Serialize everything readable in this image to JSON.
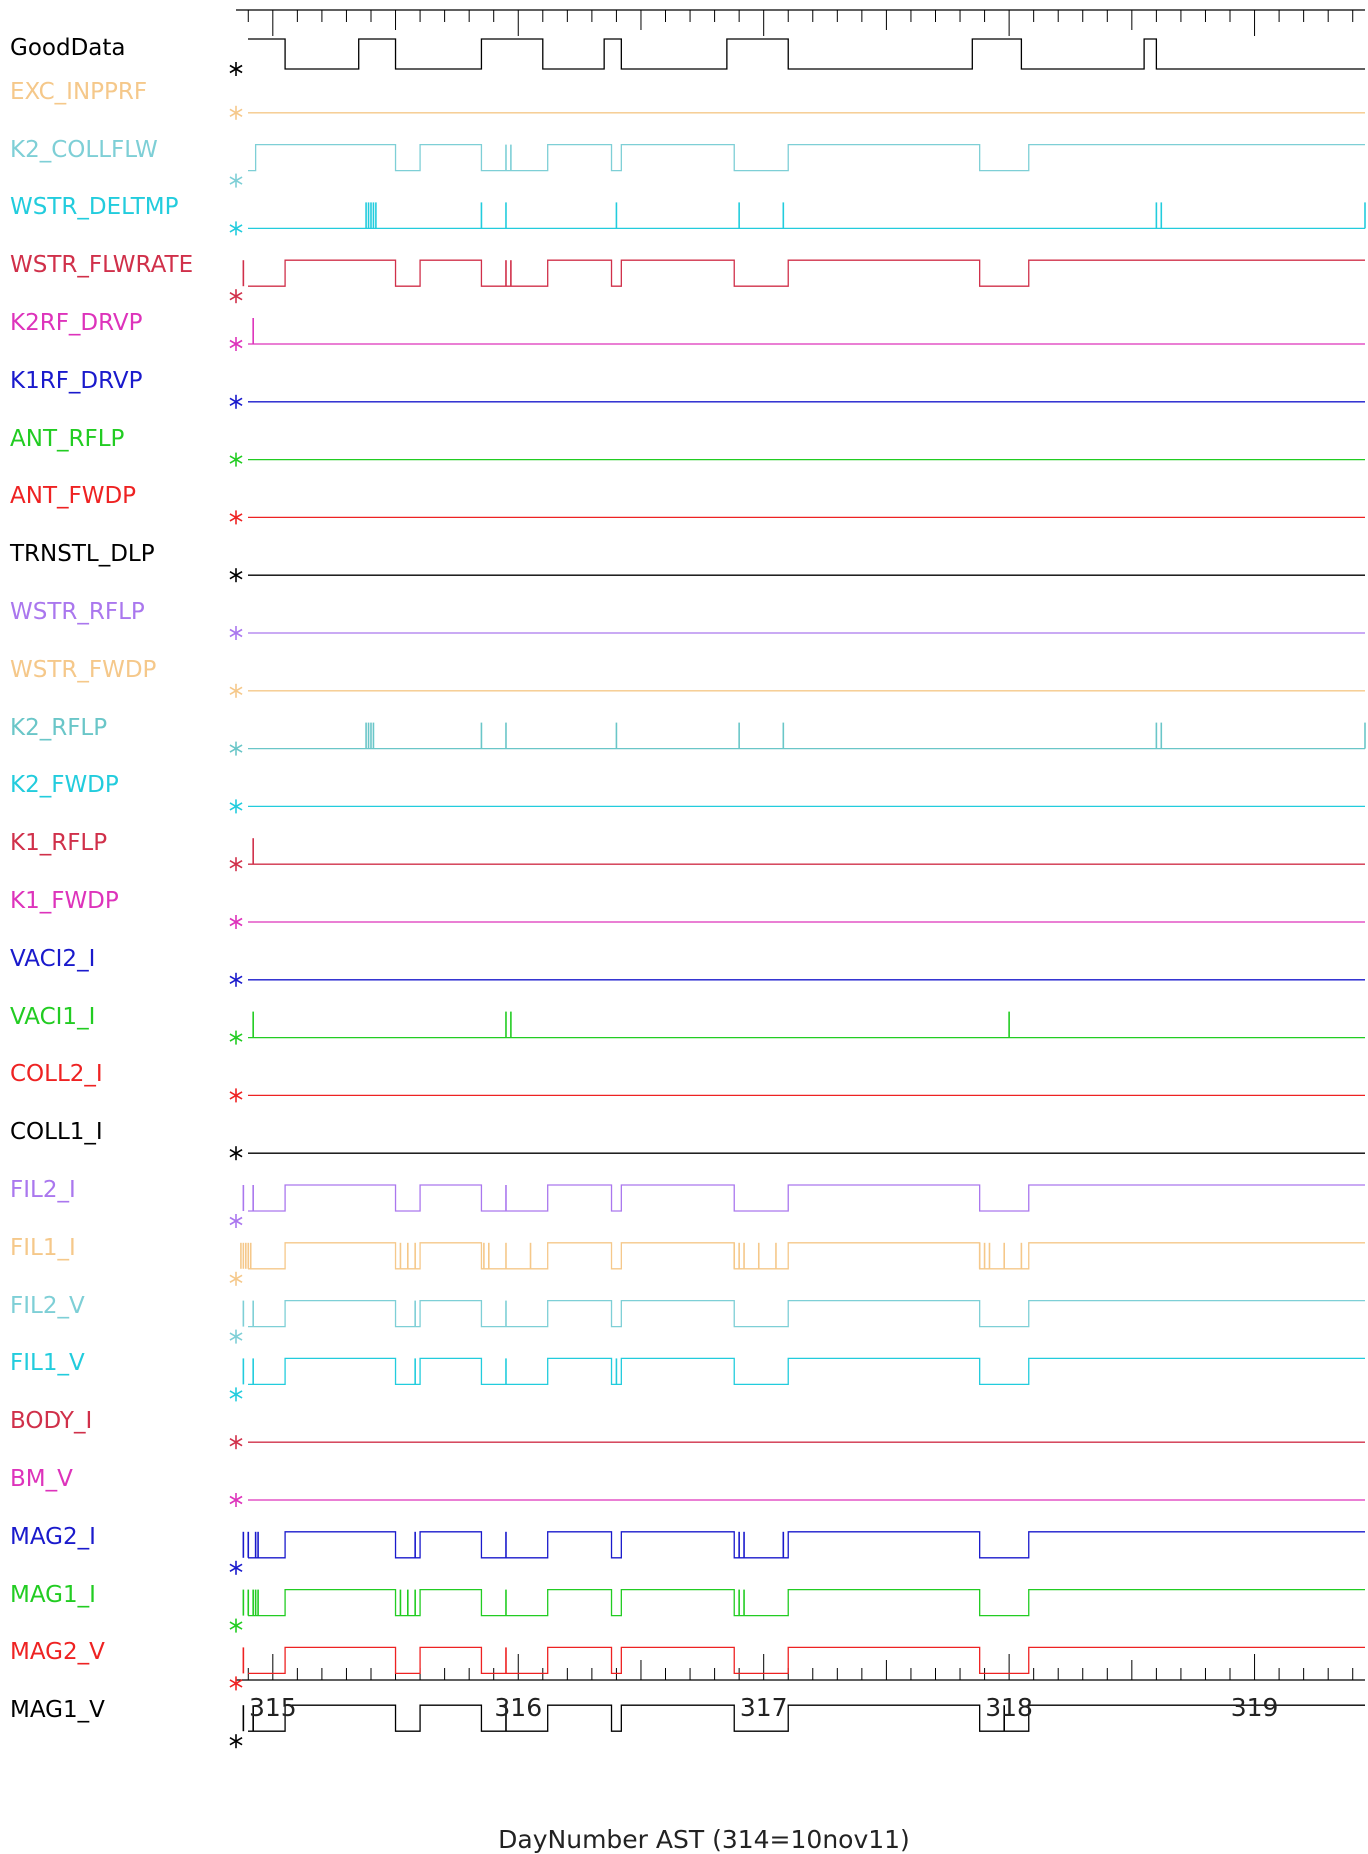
{
  "chart_data": {
    "type": "line",
    "title": "",
    "xlabel": "DayNumber AST (314=10nov11)",
    "ylabel": "",
    "xlim": [
      314.85,
      319.45
    ],
    "x_ticks": [
      "315",
      "316",
      "317",
      "318",
      "319"
    ],
    "grid": false,
    "legend": "none",
    "series": [
      {
        "name": "GoodData",
        "color": "#000000",
        "start_marker": true,
        "shape": "mask",
        "transitions": [
          [
            315.05,
            0
          ],
          [
            315.35,
            1
          ],
          [
            315.5,
            0
          ],
          [
            315.85,
            1
          ],
          [
            316.1,
            0
          ],
          [
            316.35,
            1
          ],
          [
            316.42,
            0
          ],
          [
            316.85,
            1
          ],
          [
            317.1,
            0
          ],
          [
            317.85,
            1
          ],
          [
            318.05,
            0
          ],
          [
            318.55,
            1
          ],
          [
            318.6,
            0
          ]
        ],
        "spikes": []
      },
      {
        "name": "EXC_INPPRF",
        "color": "#f5c88a",
        "start_marker": true,
        "shape": "flat",
        "transitions": [],
        "spikes": []
      },
      {
        "name": "K2_COLLFLW",
        "color": "#7ecfd6",
        "start_marker": true,
        "shape": "step",
        "transitions": [
          [
            314.93,
            1
          ],
          [
            315.5,
            0
          ],
          [
            315.6,
            1
          ],
          [
            315.85,
            0
          ],
          [
            316.12,
            1
          ],
          [
            316.38,
            0
          ],
          [
            316.42,
            1
          ],
          [
            316.88,
            0
          ],
          [
            317.1,
            1
          ],
          [
            317.88,
            0
          ],
          [
            318.08,
            1
          ]
        ],
        "spikes": [
          315.95,
          315.97
        ]
      },
      {
        "name": "WSTR_DELTMP",
        "color": "#22ccdd",
        "start_marker": true,
        "shape": "flat",
        "transitions": [],
        "spikes": [
          315.38,
          315.39,
          315.4,
          315.41,
          315.42,
          315.85,
          315.95,
          316.4,
          316.9,
          317.08,
          318.6,
          318.62,
          319.45
        ]
      },
      {
        "name": "WSTR_FLWRATE",
        "color": "#d0304a",
        "start_marker": true,
        "shape": "step",
        "transitions": [
          [
            315.05,
            1
          ],
          [
            315.5,
            0
          ],
          [
            315.6,
            1
          ],
          [
            315.85,
            0
          ],
          [
            316.12,
            1
          ],
          [
            316.38,
            0
          ],
          [
            316.42,
            1
          ],
          [
            316.88,
            0
          ],
          [
            317.1,
            1
          ],
          [
            317.88,
            0
          ],
          [
            318.08,
            1
          ]
        ],
        "spikes": [
          314.88,
          315.95,
          315.97
        ]
      },
      {
        "name": "K2RF_DRVP",
        "color": "#dd33bb",
        "start_marker": true,
        "shape": "flat",
        "transitions": [],
        "spikes": [
          314.92
        ]
      },
      {
        "name": "K1RF_DRVP",
        "color": "#1a1acc",
        "start_marker": true,
        "shape": "flat",
        "transitions": [],
        "spikes": []
      },
      {
        "name": "ANT_RFLP",
        "color": "#22cc22",
        "start_marker": true,
        "shape": "flat",
        "transitions": [],
        "spikes": []
      },
      {
        "name": "ANT_FWDP",
        "color": "#ee2222",
        "start_marker": true,
        "shape": "flat",
        "transitions": [],
        "spikes": []
      },
      {
        "name": "TRNSTL_DLP",
        "color": "#000000",
        "start_marker": true,
        "shape": "flat",
        "transitions": [],
        "spikes": []
      },
      {
        "name": "WSTR_RFLP",
        "color": "#aa77ee",
        "start_marker": true,
        "shape": "flat",
        "transitions": [],
        "spikes": []
      },
      {
        "name": "WSTR_FWDP",
        "color": "#f5c88a",
        "start_marker": true,
        "shape": "flat",
        "transitions": [],
        "spikes": []
      },
      {
        "name": "K2_RFLP",
        "color": "#6ac6c8",
        "start_marker": true,
        "shape": "flat",
        "transitions": [],
        "spikes": [
          315.38,
          315.39,
          315.4,
          315.41,
          315.85,
          315.95,
          316.4,
          316.9,
          317.08,
          318.6,
          318.62,
          319.45
        ]
      },
      {
        "name": "K2_FWDP",
        "color": "#22ccdd",
        "start_marker": true,
        "shape": "flat",
        "transitions": [],
        "spikes": []
      },
      {
        "name": "K1_RFLP",
        "color": "#d0304a",
        "start_marker": true,
        "shape": "flat",
        "transitions": [],
        "spikes": [
          314.92
        ]
      },
      {
        "name": "K1_FWDP",
        "color": "#dd33bb",
        "start_marker": true,
        "shape": "flat",
        "transitions": [],
        "spikes": []
      },
      {
        "name": "VACI2_I",
        "color": "#1a1acc",
        "start_marker": true,
        "shape": "flat",
        "transitions": [],
        "spikes": []
      },
      {
        "name": "VACI1_I",
        "color": "#22cc22",
        "start_marker": true,
        "shape": "flat",
        "transitions": [],
        "spikes": [
          314.92,
          315.95,
          315.97,
          318.0
        ]
      },
      {
        "name": "COLL2_I",
        "color": "#ee2222",
        "start_marker": true,
        "shape": "flat",
        "transitions": [],
        "spikes": []
      },
      {
        "name": "COLL1_I",
        "color": "#000000",
        "start_marker": true,
        "shape": "flat",
        "transitions": [],
        "spikes": []
      },
      {
        "name": "FIL2_I",
        "color": "#aa77ee",
        "start_marker": true,
        "shape": "step",
        "transitions": [
          [
            315.05,
            1
          ],
          [
            315.5,
            0
          ],
          [
            315.6,
            1
          ],
          [
            315.85,
            0
          ],
          [
            316.12,
            1
          ],
          [
            316.38,
            0
          ],
          [
            316.42,
            1
          ],
          [
            316.88,
            0
          ],
          [
            317.1,
            1
          ],
          [
            317.88,
            0
          ],
          [
            318.08,
            1
          ]
        ],
        "spikes": [
          314.88,
          314.92,
          315.95
        ]
      },
      {
        "name": "FIL1_I",
        "color": "#f5c88a",
        "start_marker": true,
        "shape": "step",
        "transitions": [
          [
            315.05,
            1
          ],
          [
            315.5,
            0
          ],
          [
            315.6,
            1
          ],
          [
            315.85,
            0
          ],
          [
            316.12,
            1
          ],
          [
            316.38,
            0
          ],
          [
            316.42,
            1
          ],
          [
            316.88,
            0
          ],
          [
            317.1,
            1
          ],
          [
            317.88,
            0
          ],
          [
            318.08,
            1
          ]
        ],
        "spikes": [
          314.87,
          314.88,
          314.89,
          314.9,
          314.91,
          315.52,
          315.55,
          315.58,
          315.86,
          315.88,
          315.95,
          316.05,
          316.88,
          316.9,
          316.92,
          316.98,
          317.05,
          317.88,
          317.9,
          317.92,
          317.98,
          318.05
        ]
      },
      {
        "name": "FIL2_V",
        "color": "#7ecfd6",
        "start_marker": true,
        "shape": "step",
        "transitions": [
          [
            315.05,
            1
          ],
          [
            315.5,
            0
          ],
          [
            315.6,
            1
          ],
          [
            315.85,
            0
          ],
          [
            316.12,
            1
          ],
          [
            316.38,
            0
          ],
          [
            316.42,
            1
          ],
          [
            316.88,
            0
          ],
          [
            317.1,
            1
          ],
          [
            317.88,
            0
          ],
          [
            318.08,
            1
          ]
        ],
        "spikes": [
          314.88,
          314.92,
          315.58,
          315.95
        ]
      },
      {
        "name": "FIL1_V",
        "color": "#22ccdd",
        "start_marker": true,
        "shape": "step",
        "transitions": [
          [
            315.05,
            1
          ],
          [
            315.5,
            0
          ],
          [
            315.6,
            1
          ],
          [
            315.85,
            0
          ],
          [
            316.12,
            1
          ],
          [
            316.38,
            0
          ],
          [
            316.42,
            1
          ],
          [
            316.88,
            0
          ],
          [
            317.1,
            1
          ],
          [
            317.88,
            0
          ],
          [
            318.08,
            1
          ]
        ],
        "spikes": [
          314.88,
          314.92,
          315.58,
          315.95,
          316.4
        ]
      },
      {
        "name": "BODY_I",
        "color": "#d0304a",
        "start_marker": true,
        "shape": "flat",
        "transitions": [],
        "spikes": []
      },
      {
        "name": "BM_V",
        "color": "#dd33bb",
        "start_marker": true,
        "shape": "flat",
        "transitions": [],
        "spikes": []
      },
      {
        "name": "MAG2_I",
        "color": "#1a1acc",
        "start_marker": true,
        "shape": "step",
        "transitions": [
          [
            315.05,
            1
          ],
          [
            315.5,
            0
          ],
          [
            315.6,
            1
          ],
          [
            315.85,
            0
          ],
          [
            316.12,
            1
          ],
          [
            316.38,
            0
          ],
          [
            316.42,
            1
          ],
          [
            316.88,
            0
          ],
          [
            317.1,
            1
          ],
          [
            317.88,
            0
          ],
          [
            318.08,
            1
          ]
        ],
        "spikes": [
          314.88,
          314.9,
          314.93,
          314.94,
          315.58,
          315.95,
          316.9,
          316.92,
          317.08
        ]
      },
      {
        "name": "MAG1_I",
        "color": "#22cc22",
        "start_marker": true,
        "shape": "step",
        "transitions": [
          [
            315.05,
            1
          ],
          [
            315.5,
            0
          ],
          [
            315.6,
            1
          ],
          [
            315.85,
            0
          ],
          [
            316.12,
            1
          ],
          [
            316.38,
            0
          ],
          [
            316.42,
            1
          ],
          [
            316.88,
            0
          ],
          [
            317.1,
            1
          ],
          [
            317.88,
            0
          ],
          [
            318.08,
            1
          ]
        ],
        "spikes": [
          314.88,
          314.9,
          314.92,
          314.93,
          314.94,
          315.52,
          315.55,
          315.58,
          315.95,
          316.9,
          316.92
        ]
      },
      {
        "name": "MAG2_V",
        "color": "#ee2222",
        "start_marker": true,
        "shape": "step",
        "transitions": [
          [
            315.05,
            1
          ],
          [
            315.5,
            0
          ],
          [
            315.6,
            1
          ],
          [
            315.85,
            0
          ],
          [
            316.12,
            1
          ],
          [
            316.38,
            0
          ],
          [
            316.42,
            1
          ],
          [
            316.88,
            0
          ],
          [
            317.1,
            1
          ],
          [
            317.88,
            0
          ],
          [
            318.08,
            1
          ]
        ],
        "spikes": [
          314.88,
          315.95
        ]
      },
      {
        "name": "MAG1_V",
        "color": "#000000",
        "start_marker": true,
        "shape": "step",
        "transitions": [
          [
            315.05,
            1
          ],
          [
            315.5,
            0
          ],
          [
            315.6,
            1
          ],
          [
            315.85,
            0
          ],
          [
            316.12,
            1
          ],
          [
            316.38,
            0
          ],
          [
            316.42,
            1
          ],
          [
            316.88,
            0
          ],
          [
            317.1,
            1
          ],
          [
            317.88,
            0
          ],
          [
            318.08,
            1
          ]
        ],
        "spikes": [
          314.88,
          314.92,
          315.95,
          317.98
        ]
      }
    ]
  }
}
